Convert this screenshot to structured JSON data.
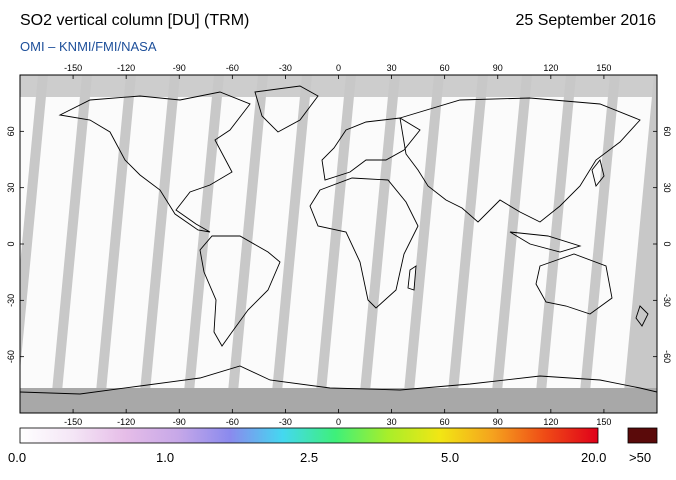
{
  "header": {
    "title": "SO2 vertical column [DU] (TRM)",
    "date": "25 September 2016",
    "source": "OMI  –  KNMI/FMI/NASA"
  },
  "map": {
    "lon_ticks": [
      "-150",
      "-120",
      "-90",
      "-60",
      "-30",
      "0",
      "30",
      "60",
      "90",
      "120",
      "150"
    ],
    "lat_ticks": [
      "60",
      "30",
      "0",
      "-30",
      "-60"
    ],
    "lon_range": [
      -180,
      180
    ],
    "lat_range": [
      -90,
      90
    ],
    "projection": "equirectangular",
    "colors": {
      "ocean_land_bg": "#c8c8c8",
      "no_data": "#a8a8a8",
      "swath": "#ffffff",
      "coastline": "#000000"
    }
  },
  "colorbar": {
    "labels": [
      "0.0",
      "1.0",
      "2.5",
      "5.0",
      "20.0",
      ">50"
    ],
    "stops": [
      "#ffffff",
      "#f4e6f6",
      "#e6bde8",
      "#c7a8e8",
      "#8a8aee",
      "#44d8f0",
      "#3ef07a",
      "#a8ee2a",
      "#f2e614",
      "#f5a21e",
      "#ef4a16",
      "#e0001a"
    ],
    "overflow_color": "#5a0a0a"
  }
}
